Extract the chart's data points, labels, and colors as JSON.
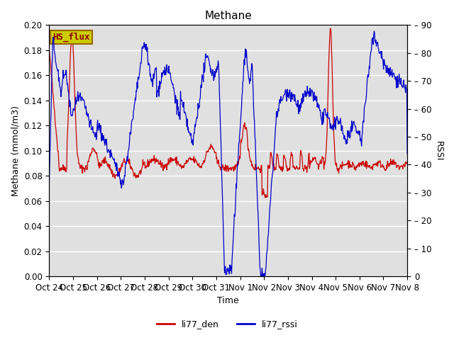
{
  "title": "Methane",
  "ylabel_left": "Methane (mmol/m3)",
  "ylabel_right": "RSSI",
  "xlabel": "Time",
  "ylim_left": [
    0.0,
    0.2
  ],
  "ylim_right": [
    0,
    90
  ],
  "yticks_left": [
    0.0,
    0.02,
    0.04,
    0.06,
    0.08,
    0.1,
    0.12,
    0.14,
    0.16,
    0.18,
    0.2
  ],
  "yticks_right": [
    0,
    10,
    20,
    30,
    40,
    50,
    60,
    70,
    80,
    90
  ],
  "xtick_labels": [
    "Oct 24",
    "Oct 25",
    "Oct 26",
    "Oct 27",
    "Oct 28",
    "Oct 29",
    "Oct 30",
    "Oct 31",
    "Nov 1",
    "Nov 2",
    "Nov 3",
    "Nov 4",
    "Nov 5",
    "Nov 6",
    "Nov 7",
    "Nov 8"
  ],
  "legend_labels": [
    "li77_den",
    "li77_rssi"
  ],
  "line_color_red": "#cc0000",
  "line_color_blue": "#0000cc",
  "bg_color": "#e0e0e0",
  "hs_flux_label": "HS_flux",
  "hs_flux_bg": "#cccc00",
  "hs_flux_border": "#996600",
  "title_fontsize": 11,
  "axis_fontsize": 9,
  "tick_fontsize": 8.5
}
